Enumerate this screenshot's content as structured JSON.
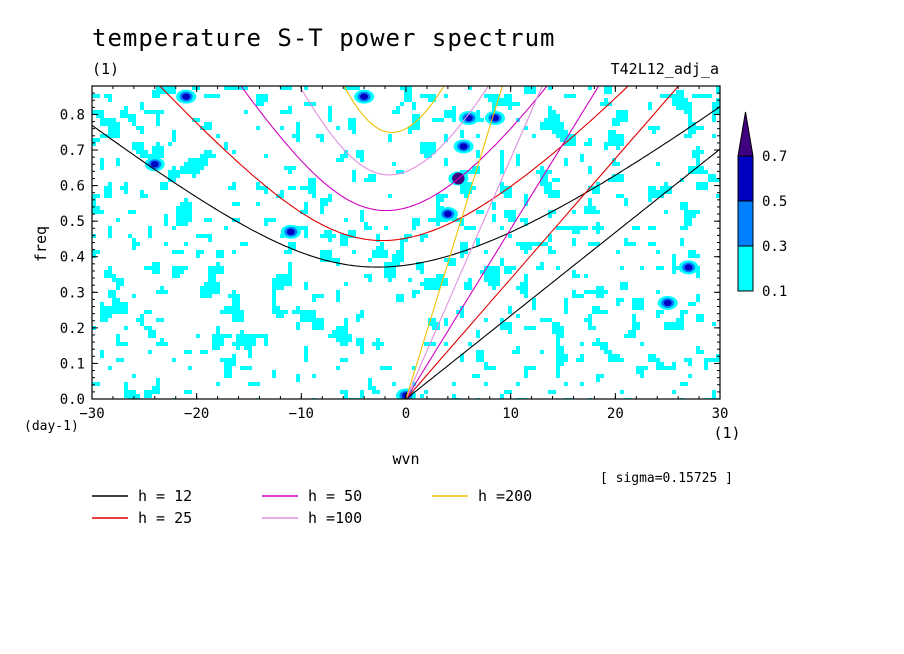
{
  "chart_data": {
    "type": "heatmap",
    "title": "temperature S-T power spectrum",
    "subtitle_left": "(1)",
    "subtitle_right": "T42L12_adj_a",
    "xlabel": "wvn",
    "ylabel": "freq",
    "x_unit": "(1)",
    "y_unit": "(day-1)",
    "xlim": [
      -30,
      30
    ],
    "ylim": [
      0,
      0.88
    ],
    "x_ticks": [
      -30,
      -20,
      -10,
      0,
      10,
      20,
      30
    ],
    "x_tick_labels": [
      "-30",
      "-20",
      "-10",
      "0",
      "10",
      "20",
      "30"
    ],
    "y_ticks": [
      0.0,
      0.1,
      0.2,
      0.3,
      0.4,
      0.5,
      0.6,
      0.7,
      0.8
    ],
    "y_tick_labels": [
      "0.0",
      "0.1",
      "0.2",
      "0.3",
      "0.4",
      "0.5",
      "0.6",
      "0.7",
      "0.8"
    ],
    "sigma_note": "[ sigma=0.15725 ]",
    "colorbar": {
      "levels": [
        0.1,
        0.3,
        0.5,
        0.7
      ],
      "level_labels": [
        "0.1",
        "0.3",
        "0.5",
        "0.7"
      ],
      "colors": [
        "#00ffff",
        "#0080ff",
        "#0000c0",
        "#400080"
      ]
    },
    "dispersion_curves": [
      {
        "label": "h = 12",
        "color": "#000000"
      },
      {
        "label": "h = 25",
        "color": "#e00000"
      },
      {
        "label": "h = 50",
        "color": "#d000c0"
      },
      {
        "label": "h =100",
        "color": "#e090e0"
      },
      {
        "label": "h =200",
        "color": "#f0c000"
      }
    ],
    "field_seed": 42,
    "highlights": [
      {
        "k": 5,
        "f": 0.62,
        "level": 0.7
      },
      {
        "k": 0,
        "f": 0.01,
        "level": 0.5
      },
      {
        "k": -4,
        "f": 0.85,
        "level": 0.5
      },
      {
        "k": 5.5,
        "f": 0.71,
        "level": 0.5
      },
      {
        "k": 8.5,
        "f": 0.79,
        "level": 0.5
      },
      {
        "k": 6,
        "f": 0.79,
        "level": 0.5
      },
      {
        "k": -24,
        "f": 0.66,
        "level": 0.5
      },
      {
        "k": -21,
        "f": 0.85,
        "level": 0.5
      },
      {
        "k": 25,
        "f": 0.27,
        "level": 0.5
      },
      {
        "k": 27,
        "f": 0.37,
        "level": 0.5
      },
      {
        "k": 4,
        "f": 0.52,
        "level": 0.5
      },
      {
        "k": -11,
        "f": 0.47,
        "level": 0.5
      }
    ]
  }
}
